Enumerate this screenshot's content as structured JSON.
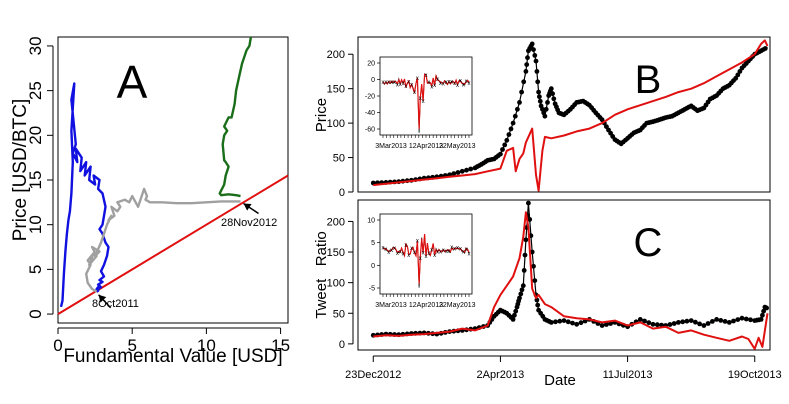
{
  "chart_data": [
    {
      "panel": "A",
      "type": "line",
      "panel_label": "A",
      "xlabel": "Fundamental Value [USD]",
      "ylabel": "Price [USD/BTC]",
      "xlim": [
        0,
        15.5
      ],
      "ylim": [
        -1,
        31
      ],
      "xticks": [
        0,
        5,
        10,
        15
      ],
      "yticks": [
        0,
        5,
        10,
        15,
        20,
        25,
        30
      ],
      "annotations": [
        {
          "text": "8Oct2011",
          "point": [
            2.6,
            2.5
          ]
        },
        {
          "text": "28Nov2012",
          "point": [
            12.3,
            12.6
          ]
        }
      ],
      "series": [
        {
          "name": "price = fundamental value",
          "color": "#e01010",
          "x": [
            0,
            15.5
          ],
          "y": [
            0,
            15.5
          ]
        },
        {
          "name": "blue trajectory",
          "color": "#1010e0",
          "x": [
            0.2,
            0.3,
            0.4,
            0.5,
            0.6,
            0.7,
            0.8,
            0.9,
            1.0,
            0.9,
            1.1,
            0.9,
            1.2,
            1.0,
            1.3,
            1.2,
            1.6,
            1.5,
            1.9,
            1.8,
            2.2,
            2.1,
            2.5,
            2.4,
            2.8,
            2.7,
            3.0,
            3.2,
            3.1,
            3.0,
            2.8,
            3.0,
            3.2,
            3.4,
            3.3,
            3.1,
            2.9,
            3.1,
            2.8,
            3.0,
            2.7,
            2.9,
            2.6,
            2.8,
            2.7,
            2.6
          ],
          "y": [
            0.8,
            1.5,
            4.5,
            7.0,
            9.0,
            10.5,
            11.5,
            13.5,
            17.0,
            20.5,
            25.8,
            24.0,
            19.0,
            18.0,
            17.0,
            18.5,
            17.5,
            16.0,
            17.0,
            15.5,
            16.5,
            15.0,
            14.5,
            15.5,
            15.0,
            14.0,
            13.5,
            12.0,
            11.0,
            10.0,
            9.5,
            9.0,
            8.0,
            7.5,
            6.5,
            5.5,
            4.8,
            4.2,
            3.8,
            3.6,
            3.3,
            3.0,
            2.8,
            3.2,
            2.6,
            2.5
          ]
        },
        {
          "name": "grey trajectory",
          "color": "#a0a0a0",
          "x": [
            2.6,
            2.3,
            2.0,
            1.9,
            2.2,
            2.0,
            2.4,
            2.1,
            2.6,
            2.3,
            2.8,
            2.5,
            2.9,
            3.0,
            3.3,
            3.6,
            3.4,
            3.8,
            3.6,
            4.0,
            4.2,
            4.0,
            4.5,
            4.8,
            5.0,
            5.4,
            5.7,
            5.8,
            6.0,
            5.9,
            6.2,
            7.0,
            8.0,
            9.0,
            10.0,
            11.0,
            12.3
          ],
          "y": [
            2.5,
            2.8,
            3.5,
            4.5,
            5.5,
            6.0,
            6.8,
            5.5,
            6.5,
            7.5,
            7.0,
            6.5,
            8.0,
            8.5,
            10.0,
            11.0,
            10.5,
            11.0,
            12.0,
            11.5,
            12.0,
            12.5,
            12.8,
            12.5,
            13.2,
            12.0,
            13.5,
            14.0,
            13.2,
            12.8,
            12.5,
            12.5,
            12.4,
            12.4,
            12.5,
            12.6,
            12.6
          ]
        },
        {
          "name": "green trajectory",
          "color": "#1a6e1a",
          "x": [
            12.3,
            12.0,
            11.5,
            11.0,
            10.9,
            11.2,
            11.3,
            11.5,
            11.3,
            11.2,
            11.1,
            11.2,
            11.4,
            11.2,
            11.5,
            11.7,
            11.9,
            12.0,
            12.2,
            12.4,
            12.5,
            12.7,
            12.9,
            13.0
          ],
          "y": [
            13.2,
            13.3,
            13.4,
            13.3,
            13.5,
            14.5,
            15.5,
            16.5,
            17.0,
            17.2,
            19.0,
            20.0,
            20.5,
            21.0,
            22.0,
            22.0,
            23.5,
            25.0,
            26.5,
            28.0,
            28.5,
            29.5,
            30.0,
            31.0
          ]
        }
      ]
    },
    {
      "panel": "B",
      "type": "line",
      "panel_label": "B",
      "xlabel": "",
      "ylabel": "Price",
      "ylim": [
        0,
        225
      ],
      "yticks": [
        0,
        50,
        100,
        150,
        200
      ],
      "x_unit": "days since 23Dec2012",
      "xlim": [
        -12,
        312
      ],
      "series": [
        {
          "name": "market price",
          "color": "#000000",
          "marker": "dot",
          "x": [
            0,
            10,
            20,
            30,
            40,
            50,
            60,
            70,
            80,
            85,
            90,
            95,
            100,
            105,
            110,
            115,
            120,
            122,
            125,
            128,
            130,
            132,
            135,
            138,
            140,
            143,
            146,
            150,
            155,
            160,
            165,
            170,
            175,
            180,
            185,
            190,
            195,
            200,
            205,
            210,
            215,
            220,
            225,
            230,
            235,
            240,
            245,
            250,
            255,
            260,
            265,
            270,
            275,
            280,
            285,
            290,
            295,
            300,
            305,
            310
          ],
          "x2": null,
          "y": [
            13,
            14,
            15,
            17,
            20,
            22,
            25,
            30,
            35,
            40,
            46,
            48,
            55,
            75,
            100,
            130,
            175,
            205,
            215,
            190,
            145,
            125,
            110,
            140,
            150,
            128,
            115,
            112,
            120,
            130,
            132,
            126,
            115,
            105,
            90,
            76,
            70,
            78,
            86,
            90,
            100,
            102,
            105,
            108,
            110,
            115,
            120,
            125,
            118,
            122,
            135,
            140,
            150,
            155,
            165,
            180,
            190,
            200,
            205,
            210
          ]
        },
        {
          "name": "fundamental value",
          "color": "#e01010",
          "x": [
            0,
            10,
            20,
            30,
            40,
            50,
            60,
            70,
            80,
            90,
            100,
            105,
            110,
            112,
            115,
            118,
            120,
            125,
            128,
            130,
            133,
            135,
            140,
            150,
            160,
            170,
            180,
            190,
            200,
            210,
            220,
            230,
            240,
            250,
            260,
            270,
            280,
            290,
            300,
            305,
            308,
            310
          ],
          "y": [
            10,
            12,
            14,
            16,
            18,
            20,
            22,
            24,
            26,
            30,
            34,
            60,
            64,
            30,
            48,
            56,
            72,
            92,
            25,
            2,
            60,
            80,
            78,
            82,
            88,
            92,
            100,
            112,
            120,
            126,
            132,
            138,
            145,
            150,
            158,
            168,
            178,
            188,
            200,
            215,
            220,
            212
          ]
        }
      ],
      "inset": {
        "xtick_labels": [
          "3Mar2013",
          "12Apr2013",
          "22May2013"
        ],
        "ytick_labels": [
          "20",
          "0",
          "-20",
          "-40",
          "-60"
        ]
      }
    },
    {
      "panel": "C",
      "type": "line",
      "panel_label": "C",
      "xlabel": "Date",
      "ylabel": "Tweet   Ratio",
      "ylim": [
        -10,
        235
      ],
      "yticks": [
        0,
        50,
        100,
        150,
        200
      ],
      "x_unit": "days since 23Dec2012",
      "xlim": [
        -12,
        312
      ],
      "xtick_labels": [
        "23Dec2012",
        "2Apr2013",
        "11Jul2013",
        "19Oct2013"
      ],
      "xtick_days": [
        0,
        100,
        200,
        300
      ],
      "series": [
        {
          "name": "tweet ratio",
          "color": "#000000",
          "marker": "dot",
          "x": [
            0,
            10,
            20,
            30,
            40,
            50,
            60,
            70,
            80,
            90,
            95,
            100,
            105,
            110,
            113,
            115,
            118,
            120,
            122,
            125,
            128,
            130,
            135,
            140,
            150,
            160,
            170,
            180,
            190,
            200,
            210,
            220,
            230,
            240,
            250,
            260,
            270,
            280,
            290,
            300,
            305,
            308,
            310
          ],
          "y": [
            14,
            16,
            15,
            17,
            18,
            16,
            20,
            22,
            25,
            30,
            45,
            55,
            50,
            40,
            60,
            75,
            95,
            170,
            230,
            150,
            80,
            55,
            40,
            35,
            38,
            32,
            40,
            30,
            35,
            28,
            40,
            32,
            30,
            35,
            38,
            30,
            40,
            35,
            42,
            38,
            40,
            60,
            58
          ]
        },
        {
          "name": "model",
          "color": "#e01010",
          "x": [
            0,
            10,
            20,
            30,
            40,
            50,
            60,
            70,
            80,
            90,
            95,
            100,
            105,
            110,
            115,
            118,
            120,
            122,
            125,
            128,
            130,
            135,
            140,
            150,
            160,
            170,
            180,
            190,
            200,
            210,
            220,
            230,
            240,
            250,
            260,
            270,
            280,
            290,
            295,
            300,
            303,
            306,
            310
          ],
          "y": [
            12,
            14,
            13,
            15,
            16,
            18,
            20,
            25,
            22,
            30,
            60,
            80,
            95,
            110,
            140,
            175,
            215,
            190,
            90,
            75,
            80,
            65,
            60,
            45,
            42,
            40,
            35,
            38,
            30,
            35,
            25,
            28,
            18,
            22,
            15,
            10,
            5,
            12,
            8,
            -8,
            10,
            -5,
            50
          ]
        }
      ],
      "inset": {
        "xtick_labels": [
          "3Mar2013",
          "12Apr2013",
          "22May2013"
        ],
        "ytick_labels": [
          "10",
          "5",
          "0",
          "-5"
        ]
      }
    }
  ]
}
